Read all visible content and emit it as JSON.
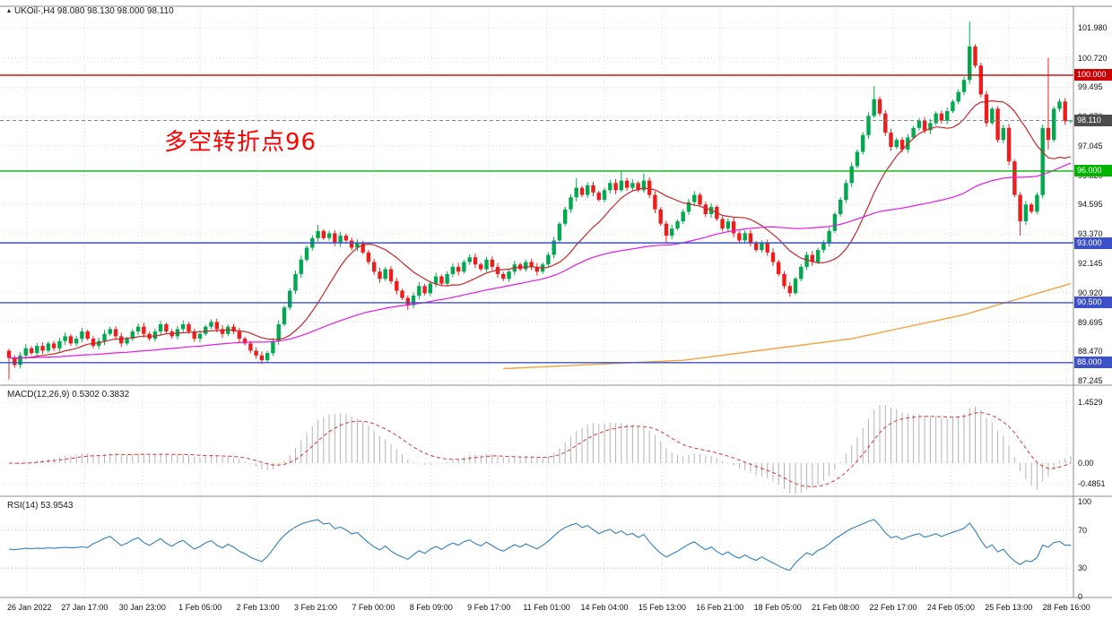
{
  "main_chart": {
    "title": "UKOil-,H4 98.080 98.130 98.000 98.110",
    "symbol": "UKOil-",
    "timeframe": "H4",
    "ohlc": {
      "open": "98.080",
      "high": "98.130",
      "low": "98.000",
      "close": "98.110"
    },
    "annotation": {
      "text": "多空转折点96",
      "color": "#ff0000"
    },
    "price_labels": [
      "101.980",
      "100.720",
      "99.495",
      "98.270",
      "97.045",
      "95.820",
      "94.595",
      "93.370",
      "92.145",
      "90.920",
      "89.695",
      "88.470",
      "87.245"
    ],
    "hlines": [
      {
        "price": 100.0,
        "label": "100.000",
        "color": "#cc0000"
      },
      {
        "price": 96.0,
        "label": "96.000",
        "color": "#00b400"
      },
      {
        "price": 93.0,
        "label": "93.000",
        "color": "#3c50c8"
      },
      {
        "price": 90.5,
        "label": "90.500",
        "color": "#3c50c8"
      },
      {
        "price": 88.0,
        "label": "88.000",
        "color": "#3c50c8"
      }
    ],
    "current_price": {
      "value": 98.11,
      "label": "98.110",
      "badge_color": "#4d4d4d"
    }
  },
  "macd_panel": {
    "title": "MACD(12,26,9) 0.5302 0.3832",
    "labels": [
      "1.4529",
      "0.00",
      "-0.4851"
    ],
    "label_values": [
      1.4529,
      0,
      -0.4851
    ],
    "main_value": 0.5302,
    "signal_value": 0.3832
  },
  "rsi_panel": {
    "title": "RSI(14) 53.9543",
    "labels": [
      "100",
      "70",
      "30",
      "0"
    ],
    "label_values": [
      100,
      70,
      30,
      0
    ],
    "levels": [
      70,
      30
    ],
    "value": 53.9543
  },
  "time_axis": [
    "26 Jan 2022",
    "27 Jan 17:00",
    "30 Jan 23:00",
    "1 Feb 05:00",
    "2 Feb 13:00",
    "3 Feb 21:00",
    "7 Feb 00:00",
    "8 Feb 09:00",
    "9 Feb 17:00",
    "11 Feb 01:00",
    "14 Feb 04:00",
    "15 Feb 13:00",
    "16 Feb 21:00",
    "18 Feb 05:00",
    "21 Feb 08:00",
    "22 Feb 17:00",
    "24 Feb 05:00",
    "25 Feb 13:00",
    "28 Feb 16:00"
  ],
  "chart_data": {
    "type": "candlestick",
    "title": "UKOil- H4 candlestick chart with MACD(12,26,9) and RSI(14) subpanels",
    "symbol": "UKOil-",
    "timeframe": "H4",
    "price_axis_range": [
      87.245,
      101.98
    ],
    "time_ticks": [
      "26 Jan 2022",
      "27 Jan 17:00",
      "30 Jan 23:00",
      "1 Feb 05:00",
      "2 Feb 13:00",
      "3 Feb 21:00",
      "7 Feb 00:00",
      "8 Feb 09:00",
      "9 Feb 17:00",
      "11 Feb 01:00",
      "14 Feb 04:00",
      "15 Feb 13:00",
      "16 Feb 21:00",
      "18 Feb 05:00",
      "21 Feb 08:00",
      "22 Feb 17:00",
      "24 Feb 05:00",
      "25 Feb 13:00",
      "28 Feb 16:00"
    ],
    "first_open": 88.5,
    "closes": [
      88.2,
      87.9,
      88.3,
      88.6,
      88.4,
      88.7,
      88.5,
      88.8,
      88.6,
      88.9,
      89.1,
      88.8,
      89.0,
      89.3,
      89.0,
      88.7,
      88.9,
      89.2,
      89.4,
      89.1,
      88.8,
      89.0,
      89.3,
      89.5,
      89.2,
      89.0,
      89.3,
      89.6,
      89.3,
      89.1,
      89.4,
      89.6,
      89.3,
      89.0,
      89.2,
      89.5,
      89.7,
      89.4,
      89.2,
      89.5,
      89.3,
      89.0,
      88.8,
      88.5,
      88.3,
      88.1,
      88.4,
      88.9,
      89.6,
      90.3,
      91.0,
      91.7,
      92.3,
      92.8,
      93.2,
      93.5,
      93.2,
      93.4,
      93.0,
      93.3,
      93.1,
      92.8,
      93.0,
      92.6,
      92.2,
      91.8,
      91.5,
      91.9,
      91.4,
      91.0,
      90.7,
      90.4,
      90.8,
      91.2,
      90.9,
      91.3,
      91.6,
      91.3,
      91.7,
      92.0,
      91.8,
      92.2,
      92.4,
      92.1,
      91.9,
      92.3,
      92.0,
      91.7,
      91.5,
      91.8,
      92.1,
      91.9,
      92.2,
      92.0,
      91.8,
      92.1,
      92.5,
      93.1,
      93.8,
      94.4,
      94.9,
      95.3,
      95.0,
      95.4,
      95.1,
      94.8,
      95.2,
      95.5,
      95.2,
      95.6,
      95.3,
      95.5,
      95.2,
      95.6,
      95.0,
      94.4,
      93.8,
      93.3,
      93.6,
      93.9,
      94.3,
      94.7,
      95.0,
      94.6,
      94.2,
      94.5,
      94.0,
      93.6,
      93.9,
      93.4,
      93.1,
      93.4,
      93.0,
      92.7,
      93.0,
      92.6,
      92.2,
      91.7,
      91.2,
      90.9,
      91.5,
      92.0,
      92.5,
      92.2,
      92.7,
      93.0,
      93.5,
      94.2,
      94.8,
      95.5,
      96.2,
      96.8,
      97.5,
      98.3,
      99.0,
      98.4,
      97.6,
      97.0,
      97.3,
      96.9,
      97.4,
      97.8,
      98.1,
      97.7,
      98.0,
      98.4,
      98.1,
      98.5,
      98.9,
      99.3,
      99.8,
      101.2,
      100.4,
      99.2,
      98.0,
      98.6,
      97.3,
      97.8,
      96.4,
      95.0,
      93.9,
      94.6,
      94.3,
      95.0,
      97.8,
      97.3,
      98.6,
      98.9,
      98.08,
      98.11
    ],
    "wick_base": 0.08,
    "wick_var": 0.1,
    "wick_overrides": {
      "0": {
        "low": 87.3
      },
      "45": {
        "low": 87.95
      },
      "55": {
        "high": 93.75
      },
      "71": {
        "low": 90.2
      },
      "101": {
        "high": 95.7
      },
      "109": {
        "high": 96.0
      },
      "113": {
        "high": 95.9
      },
      "117": {
        "low": 93.0
      },
      "139": {
        "low": 90.75
      },
      "154": {
        "high": 99.55
      },
      "171": {
        "high": 102.25
      },
      "180": {
        "low": 93.3
      },
      "185": {
        "high": 100.72,
        "low": 96.9
      },
      "189": {
        "high": 98.13,
        "low": 98.0
      }
    },
    "ma_fast": {
      "period": 13,
      "color": "#c62828"
    },
    "ma_mid": {
      "period": 55,
      "color": "#e519e5"
    },
    "ma_slow": {
      "color": "#f2a33c",
      "points": [
        [
          88,
          87.75
        ],
        [
          120,
          88.1
        ],
        [
          150,
          89.0
        ],
        [
          170,
          90.0
        ],
        [
          189,
          91.3
        ]
      ]
    },
    "macd": {
      "fast": 12,
      "slow": 26,
      "signal": 9,
      "range": [
        -0.4851,
        1.4529
      ]
    },
    "rsi": {
      "period": 14,
      "range": [
        0,
        100
      ],
      "levels": [
        70,
        30
      ]
    }
  },
  "colors": {
    "background": "#ffffff",
    "up": "#00a94f",
    "down": "#ef1c1c",
    "grid": "#d9d9d9",
    "border": "#8c8c8c",
    "macd_hist": "#b3b3b3",
    "macd_signal": "#e03030",
    "rsi": "#2e7fc1",
    "text": "#1a1a1a"
  }
}
